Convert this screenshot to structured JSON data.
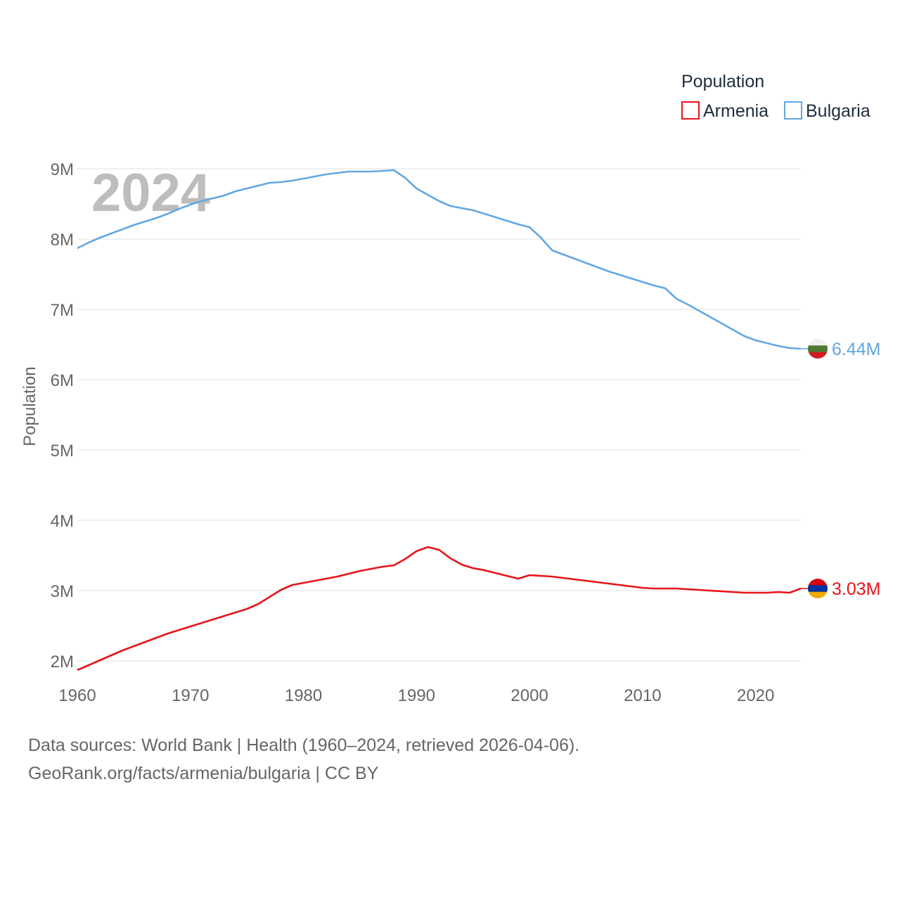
{
  "chart_data": {
    "type": "line",
    "title": "Population",
    "watermark_year": "2024",
    "ylabel": "Population",
    "xlabel": "",
    "xlim": [
      1960,
      2024
    ],
    "ylim": [
      1500000,
      9500000
    ],
    "x_ticks": [
      1960,
      1970,
      1980,
      1990,
      2000,
      2010,
      2020
    ],
    "y_ticks": [
      {
        "value": 2000000,
        "label": "2M"
      },
      {
        "value": 3000000,
        "label": "3M"
      },
      {
        "value": 4000000,
        "label": "4M"
      },
      {
        "value": 5000000,
        "label": "5M"
      },
      {
        "value": 6000000,
        "label": "6M"
      },
      {
        "value": 7000000,
        "label": "7M"
      },
      {
        "value": 8000000,
        "label": "8M"
      },
      {
        "value": 9000000,
        "label": "9M"
      }
    ],
    "legend": {
      "title": "Population",
      "position": "top-right"
    },
    "series": [
      {
        "name": "Armenia",
        "color": "#e8141a",
        "end_label": "3.03M",
        "flag_colors": [
          "#d90012",
          "#0033a0",
          "#f2a800"
        ],
        "x": [
          1960,
          1961,
          1962,
          1963,
          1964,
          1965,
          1966,
          1967,
          1968,
          1969,
          1970,
          1971,
          1972,
          1973,
          1974,
          1975,
          1976,
          1977,
          1978,
          1979,
          1980,
          1981,
          1982,
          1983,
          1984,
          1985,
          1986,
          1987,
          1988,
          1989,
          1990,
          1991,
          1992,
          1993,
          1994,
          1995,
          1996,
          1997,
          1998,
          1999,
          2000,
          2001,
          2002,
          2003,
          2004,
          2005,
          2006,
          2007,
          2008,
          2009,
          2010,
          2011,
          2012,
          2013,
          2014,
          2015,
          2016,
          2017,
          2018,
          2019,
          2020,
          2021,
          2022,
          2023,
          2024
        ],
        "values": [
          1870000,
          1940000,
          2010000,
          2080000,
          2150000,
          2210000,
          2270000,
          2330000,
          2390000,
          2440000,
          2490000,
          2540000,
          2590000,
          2640000,
          2690000,
          2740000,
          2810000,
          2910000,
          3010000,
          3080000,
          3110000,
          3140000,
          3170000,
          3200000,
          3240000,
          3280000,
          3310000,
          3340000,
          3360000,
          3450000,
          3560000,
          3620000,
          3580000,
          3460000,
          3370000,
          3320000,
          3290000,
          3250000,
          3210000,
          3170000,
          3220000,
          3210000,
          3200000,
          3180000,
          3160000,
          3140000,
          3120000,
          3100000,
          3080000,
          3060000,
          3040000,
          3030000,
          3030000,
          3030000,
          3020000,
          3010000,
          3000000,
          2990000,
          2980000,
          2970000,
          2970000,
          2970000,
          2980000,
          2970000,
          3030000
        ]
      },
      {
        "name": "Bulgaria",
        "color": "#63a7e2",
        "end_label": "6.44M",
        "flag_colors": [
          "#f0f0f0",
          "#4e7a34",
          "#d01c1f"
        ],
        "x": [
          1960,
          1961,
          1962,
          1963,
          1964,
          1965,
          1966,
          1967,
          1968,
          1969,
          1970,
          1971,
          1972,
          1973,
          1974,
          1975,
          1976,
          1977,
          1978,
          1979,
          1980,
          1981,
          1982,
          1983,
          1984,
          1985,
          1986,
          1987,
          1988,
          1989,
          1990,
          1991,
          1992,
          1993,
          1994,
          1995,
          1996,
          1997,
          1998,
          1999,
          2000,
          2001,
          2002,
          2003,
          2004,
          2005,
          2006,
          2007,
          2008,
          2009,
          2010,
          2011,
          2012,
          2013,
          2014,
          2015,
          2016,
          2017,
          2018,
          2019,
          2020,
          2021,
          2022,
          2023,
          2024
        ],
        "values": [
          7870000,
          7950000,
          8020000,
          8080000,
          8140000,
          8200000,
          8250000,
          8300000,
          8360000,
          8430000,
          8490000,
          8540000,
          8580000,
          8620000,
          8680000,
          8720000,
          8760000,
          8800000,
          8810000,
          8830000,
          8860000,
          8890000,
          8920000,
          8940000,
          8960000,
          8960000,
          8960000,
          8970000,
          8980000,
          8870000,
          8720000,
          8630000,
          8540000,
          8470000,
          8440000,
          8410000,
          8360000,
          8310000,
          8260000,
          8210000,
          8170000,
          8020000,
          7840000,
          7780000,
          7720000,
          7660000,
          7600000,
          7540000,
          7490000,
          7440000,
          7390000,
          7340000,
          7300000,
          7150000,
          7070000,
          6980000,
          6890000,
          6800000,
          6710000,
          6620000,
          6560000,
          6520000,
          6480000,
          6450000,
          6440000
        ]
      }
    ]
  },
  "source_lines": [
    "Data sources: World Bank | Health (1960–2024, retrieved 2026-04-06).",
    "GeoRank.org/facts/armenia/bulgaria | CC BY"
  ]
}
